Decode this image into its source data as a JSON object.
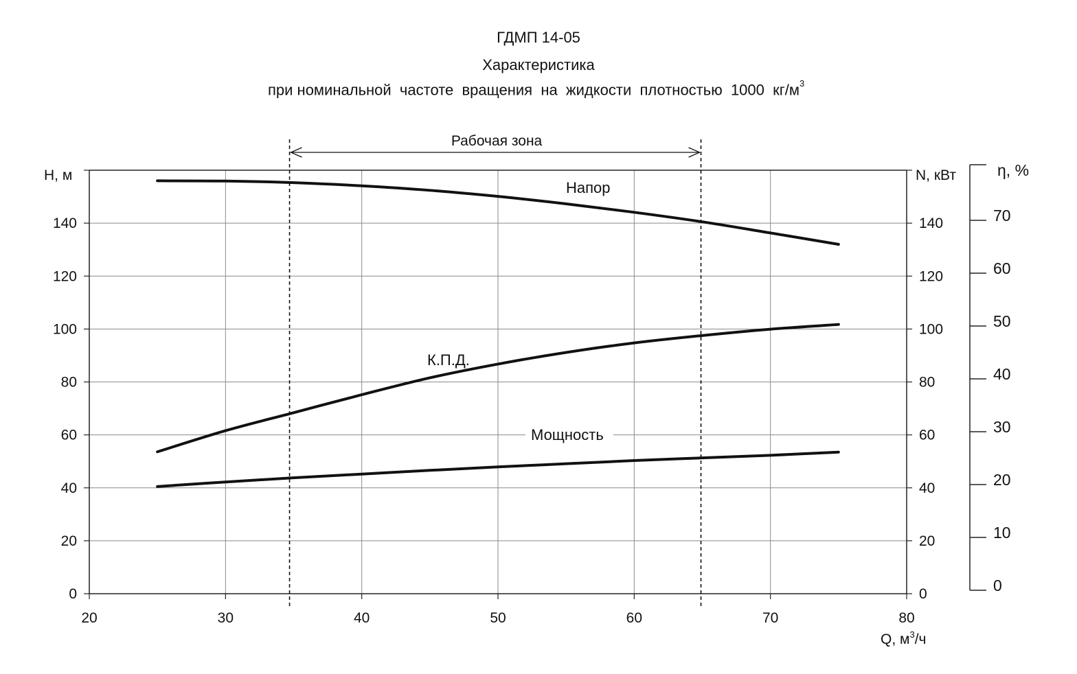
{
  "header": {
    "title": "ГДМП 14-05",
    "subtitle": "Характеристика",
    "subtitle2_main": "при номинальной  частоте  вращения  на  жидкости  плотностью  1000  кг/м",
    "subtitle2_sup": "3"
  },
  "chart_data": {
    "type": "line",
    "xlabel": "Q, м",
    "xlabel_sup": "3",
    "xlabel_suffix": "/ч",
    "ylabel_left": "H, м",
    "ylabel_right": "N, кВт",
    "ylabel_eff": "η, %",
    "xlim": [
      20,
      80
    ],
    "ylim": [
      0,
      160
    ],
    "eff_lim": [
      0,
      80
    ],
    "x_ticks": [
      20,
      30,
      40,
      50,
      60,
      70,
      80
    ],
    "y_ticks": [
      0,
      20,
      40,
      60,
      80,
      100,
      120,
      140
    ],
    "eff_ticks": [
      0,
      10,
      20,
      30,
      40,
      50,
      60,
      70
    ],
    "grid": true,
    "working_zone": {
      "label": "Рабочая  зона",
      "x_start": 34.7,
      "x_end": 64.9
    },
    "series": [
      {
        "name": "Напор",
        "axis": "H",
        "x": [
          25,
          30,
          35,
          40,
          45,
          50,
          55,
          60,
          65,
          70,
          75
        ],
        "y": [
          156,
          155.9,
          155.3,
          154.1,
          152.4,
          150.1,
          147.3,
          144.1,
          140.5,
          136.3,
          132
        ]
      },
      {
        "name": "К.П.Д.",
        "axis": "eff",
        "x": [
          25,
          30,
          35,
          40,
          45,
          50,
          55,
          60,
          65,
          70,
          75
        ],
        "y": [
          26.2,
          30.2,
          33.6,
          37.0,
          40.2,
          42.8,
          45.0,
          46.8,
          48.2,
          49.4,
          50.3
        ]
      },
      {
        "name": "Мощность",
        "axis": "N",
        "x": [
          25,
          30,
          35,
          40,
          45,
          50,
          55,
          60,
          65,
          70,
          75
        ],
        "y": [
          40.5,
          42.2,
          43.8,
          45.2,
          46.6,
          47.9,
          49.1,
          50.3,
          51.3,
          52.3,
          53.5
        ]
      }
    ]
  }
}
